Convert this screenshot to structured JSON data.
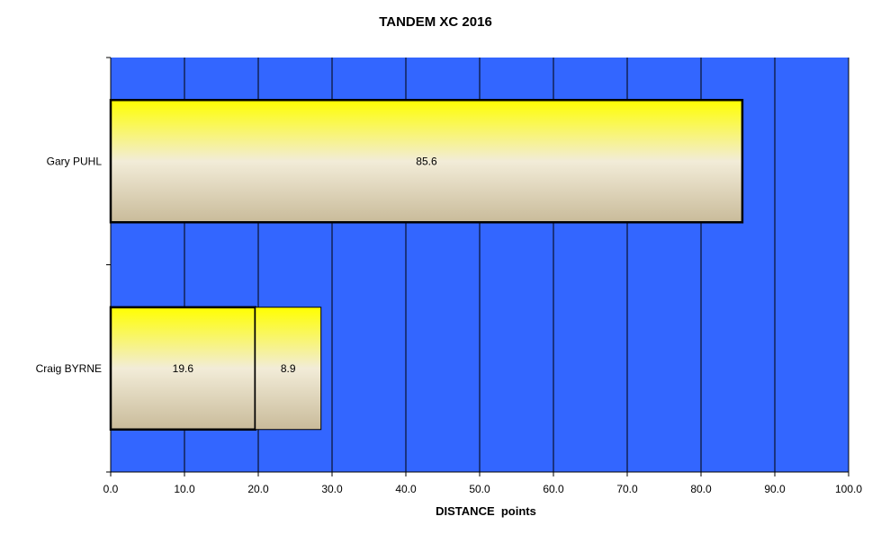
{
  "chart_data": {
    "type": "bar",
    "orientation": "horizontal",
    "stacked": true,
    "title": "TANDEM XC 2016",
    "xlabel": "DISTANCE  points",
    "ylabel": "",
    "xlim": [
      0,
      100
    ],
    "x_tick_labels": [
      "0.0",
      "10.0",
      "20.0",
      "30.0",
      "40.0",
      "50.0",
      "60.0",
      "70.0",
      "80.0",
      "90.0",
      "100.0"
    ],
    "categories": [
      "Gary PUHL",
      "Craig BYRNE"
    ],
    "series": [
      {
        "values": [
          85.6,
          19.6
        ],
        "labels": [
          "85.6",
          "19.6"
        ]
      },
      {
        "values": [
          0,
          8.9
        ],
        "labels": [
          "",
          "8.9"
        ]
      }
    ],
    "grid": "vertical",
    "legend": "none",
    "colors": {
      "plot_background": "#3366ff",
      "bar_gradient_top": "#ffff00",
      "bar_gradient_mid": "#f2ecd8",
      "bar_gradient_bottom": "#c9bb9a",
      "grid_line": "#000000"
    }
  }
}
